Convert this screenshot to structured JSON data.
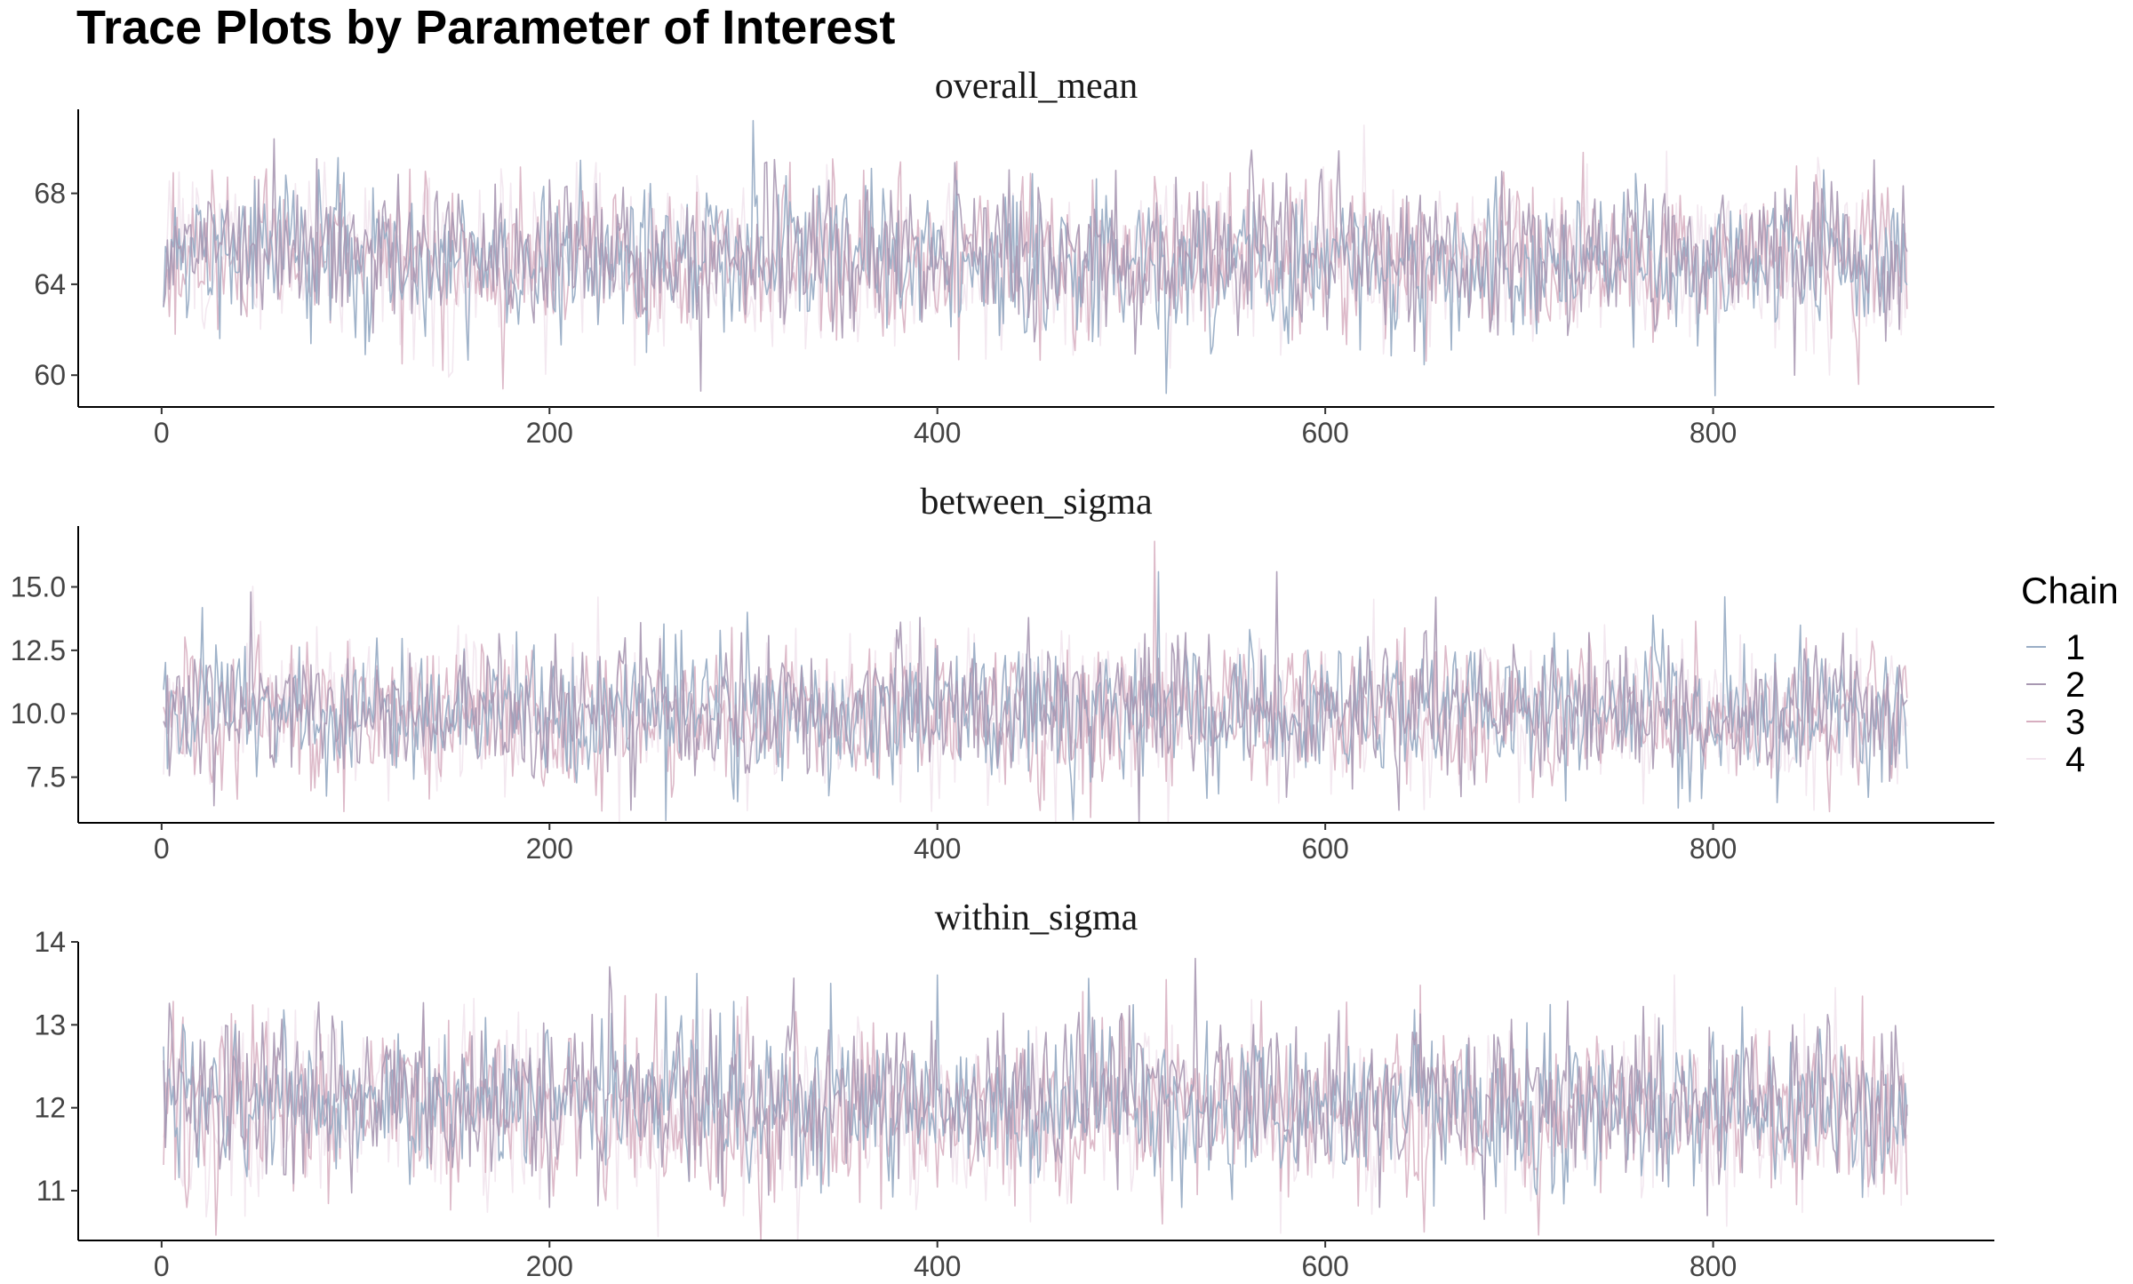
{
  "page": {
    "title": "Trace Plots by Parameter of Interest"
  },
  "legend": {
    "title": "Chain",
    "items": [
      {
        "label": "1",
        "color": "#9aaec6"
      },
      {
        "label": "2",
        "color": "#a898b2"
      },
      {
        "label": "3",
        "color": "#d7aec0"
      },
      {
        "label": "4",
        "color": "#f2e5ee"
      }
    ]
  },
  "chart_data": [
    {
      "type": "line",
      "title": "overall_mean",
      "xlim": [
        -43,
        945
      ],
      "ylim": [
        58.6,
        71.7
      ],
      "xticks": [
        0,
        200,
        400,
        600,
        800
      ],
      "yticks": [
        60,
        64,
        68
      ],
      "n_iterations": 900,
      "series": [
        {
          "name": "1",
          "center": 65.2,
          "spread": 1.65,
          "extremes": [
            [
              518,
              59.2
            ],
            [
              801,
              59.1
            ],
            [
              305,
              71.2
            ],
            [
              250,
              61.0
            ]
          ]
        },
        {
          "name": "2",
          "center": 65.3,
          "spread": 1.6,
          "extremes": [
            [
              278,
              59.3
            ],
            [
              58,
              70.4
            ],
            [
              842,
              60.0
            ],
            [
              562,
              69.9
            ]
          ]
        },
        {
          "name": "3",
          "center": 65.1,
          "spread": 1.7,
          "extremes": [
            [
              176,
              59.4
            ],
            [
              875,
              59.6
            ],
            [
              124,
              60.5
            ]
          ]
        },
        {
          "name": "4",
          "center": 65.0,
          "spread": 1.8,
          "extremes": [
            [
              620,
              71.0
            ],
            [
              140,
              60.4
            ]
          ]
        }
      ]
    },
    {
      "type": "line",
      "title": "between_sigma",
      "xlim": [
        -43,
        945
      ],
      "ylim": [
        5.7,
        17.4
      ],
      "xticks": [
        0,
        200,
        400,
        600,
        800
      ],
      "yticks": [
        7.5,
        10.0,
        12.5,
        15.0
      ],
      "n_iterations": 900,
      "series": [
        {
          "name": "1",
          "center": 10.1,
          "spread": 1.35,
          "extremes": [
            [
              514,
              15.6
            ],
            [
              260,
              5.8
            ],
            [
              302,
              14.0
            ],
            [
              833,
              6.5
            ]
          ]
        },
        {
          "name": "2",
          "center": 10.2,
          "spread": 1.35,
          "extremes": [
            [
              46,
              14.8
            ],
            [
              575,
              15.6
            ],
            [
              242,
              6.2
            ]
          ]
        },
        {
          "name": "3",
          "center": 10.0,
          "spread": 1.4,
          "extremes": [
            [
              512,
              16.8
            ],
            [
              455,
              6.6
            ]
          ]
        },
        {
          "name": "4",
          "center": 9.9,
          "spread": 1.5,
          "extremes": [
            [
              225,
              14.6
            ],
            [
              700,
              6.5
            ]
          ]
        }
      ]
    },
    {
      "type": "line",
      "title": "within_sigma",
      "xlim": [
        -43,
        945
      ],
      "ylim": [
        10.4,
        14.0
      ],
      "xticks": [
        0,
        200,
        400,
        600,
        800
      ],
      "yticks": [
        11,
        12,
        13,
        14
      ],
      "n_iterations": 900,
      "series": [
        {
          "name": "1",
          "center": 12.05,
          "spread": 0.45,
          "extremes": [
            [
              400,
              13.6
            ],
            [
              526,
              10.8
            ],
            [
              345,
              13.5
            ]
          ]
        },
        {
          "name": "2",
          "center": 12.1,
          "spread": 0.45,
          "extremes": [
            [
              533,
              13.8
            ],
            [
              231,
              13.7
            ],
            [
              797,
              10.7
            ],
            [
              200,
              10.8
            ]
          ]
        },
        {
          "name": "3",
          "center": 12.0,
          "spread": 0.5,
          "extremes": [
            [
              516,
              10.6
            ],
            [
              475,
              13.4
            ]
          ]
        },
        {
          "name": "4",
          "center": 11.95,
          "spread": 0.5,
          "extremes": [
            [
              780,
              13.6
            ],
            [
              300,
              10.7
            ]
          ]
        }
      ]
    }
  ]
}
